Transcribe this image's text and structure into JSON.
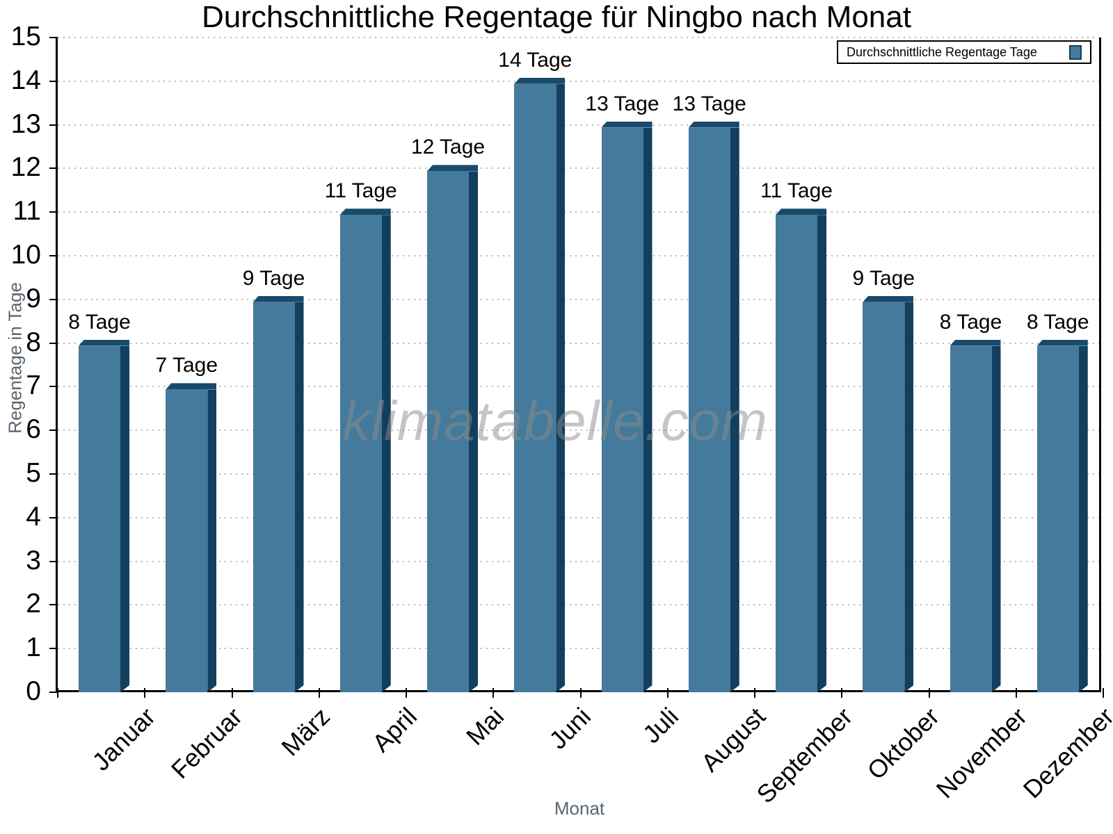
{
  "title": "Durchschnittliche Regentage für Ningbo nach Monat",
  "watermark": "klimatabelle.com",
  "legend": {
    "label": "Durchschnittliche Regentage Tage",
    "swatch_color": "#447A9C"
  },
  "chart_data": {
    "type": "bar",
    "title": "Durchschnittliche Regentage für Ningbo nach Monat",
    "xlabel": "Monat",
    "ylabel": "Regentage in Tage",
    "categories": [
      "Januar",
      "Februar",
      "März",
      "April",
      "Mai",
      "Juni",
      "Juli",
      "August",
      "September",
      "Oktober",
      "November",
      "Dezember"
    ],
    "values": [
      8,
      7,
      9,
      11,
      12,
      14,
      13,
      13,
      11,
      9,
      8,
      8
    ],
    "bar_labels": [
      "8 Tage",
      "7 Tage",
      "9 Tage",
      "11 Tage",
      "12 Tage",
      "14 Tage",
      "13 Tage",
      "13 Tage",
      "11 Tage",
      "9 Tage",
      "8 Tage",
      "8 Tage"
    ],
    "series": [
      {
        "name": "Durchschnittliche Regentage Tage",
        "values": [
          8,
          7,
          9,
          11,
          12,
          14,
          13,
          13,
          11,
          9,
          8,
          8
        ]
      }
    ],
    "ylim": [
      0,
      15
    ],
    "ytick_step": 1,
    "yticks": [
      0,
      1,
      2,
      3,
      4,
      5,
      6,
      7,
      8,
      9,
      10,
      11,
      12,
      13,
      14,
      15
    ],
    "grid": "horizontal-dotted",
    "legend_position": "top-right",
    "bar_style": "3d-extruded",
    "colors": {
      "bar_face": "#447A9C",
      "bar_side": "#123F5E",
      "bar_top": "#174A6B",
      "grid_line": "#B5B5B5",
      "axis": "#000000",
      "axis_title_text": "#5A6570",
      "tick_label_text": "#000000",
      "watermark_text": "#8C8C8C"
    }
  }
}
